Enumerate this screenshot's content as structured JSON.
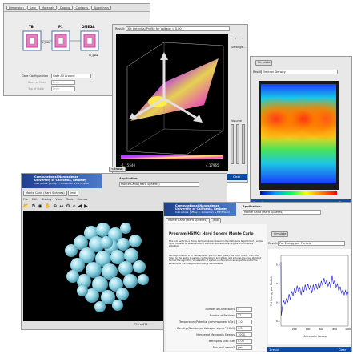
{
  "w1": {
    "tabs": [
      "Dimension",
      "Gate",
      "Materials",
      "Doping",
      "Contacts",
      "Algorithms"
    ],
    "diagram": {
      "labels": [
        "TBI",
        "P1",
        "OMEGA",
        "L_gate",
        "W_gate"
      ]
    },
    "gate_config_label": "Gate Configuration",
    "gate_config_value": "Gate All Around",
    "row2_label": "Back of Gate",
    "row2_value": "5nm",
    "row3_label": "Top of Gate",
    "row3_value": "5nm"
  },
  "w2": {
    "result_label": "Result:",
    "result_value": "3D: Potential Profile for Voltage = 0.00",
    "settings_label": "Settings...",
    "colorbar_min": "-1.15540",
    "colorbar_max": "4.17965",
    "volume_label": "Volume",
    "footer_left": "1 result",
    "footer_right": "Clear",
    "input_button": "< Input"
  },
  "w3": {
    "simulate_button": "Simulate",
    "result_label": "Result:",
    "result_value": "Electron Density",
    "footer_left": "1 result",
    "footer_right": "Clear"
  },
  "w4": {
    "banner_line1": "Computational Nanoscience",
    "banner_line2": "University of California, Berkeley",
    "banner_line3": "Instructors: Jeffrey C. Grossman & Elif Ertekin",
    "application_label": "Application:",
    "application_value": "Monte Carlo (Hard Spheres)",
    "tabs": [
      "Monte Carlo (Hard Spheres)",
      "Jmol"
    ],
    "menu": [
      "File",
      "Edit",
      "Display",
      "View",
      "Tools",
      "Macros"
    ],
    "status": "776 x 671"
  },
  "w5": {
    "banner_line1": "Computational Nanoscience",
    "banner_line2": "University of California, Berkeley",
    "banner_line3": "Instructors: Jeffrey C. Grossman & Elif Ertekin",
    "application_label": "Application:",
    "application_value": "Monte Carlo (Hard Spheres)",
    "tabs": [
      "Monte Carlo (Hard Spheres)",
      "Jmol"
    ],
    "simulate_button": "Simulate",
    "result_label": "Result:",
    "result_value": "Pot Energy per Particle",
    "heading": "Program HSMC: Hard Sphere Monte Carlo",
    "description": "This tool performs a Monte Carlo simulation based on the Metropolis Algorithm of a simple liquid modeled as an ensemble of identical spheres interacting via a hard sphere potential.",
    "description2": "Although this tool is for hard spheres, you can also specify the cutoff radius. The code relies on the ability to sample configurations and states, and includes the most standard form of the algorithm. Visualization of system configurations as snapshots and of the evolution of the total potential energy are available.",
    "params": [
      {
        "label": "Number of Dimensions",
        "value": "3"
      },
      {
        "label": "Number of Particles",
        "value": "32"
      },
      {
        "label": "Temperature/Potential (dimensionless kT/ε)",
        "value": "1.0"
      },
      {
        "label": "Density (Number particles per sigma^d Cell)",
        "value": "0.5"
      },
      {
        "label": "Number of Metropolis Sweeps",
        "value": "1000"
      },
      {
        "label": "Metropolis Step Size",
        "value": "0.05"
      },
      {
        "label": "Run Jmol viewer?",
        "value": "yes"
      }
    ],
    "footer_left": "1 result",
    "footer_right": "Clear"
  },
  "chart_data": {
    "type": "line",
    "title": "",
    "xlabel": "Metropolis Sweep",
    "ylabel": "Pot Energy per Particle",
    "xlim": [
      0,
      1000
    ],
    "ylim": [
      0.15,
      0.9
    ],
    "xticks": [
      "200",
      "400",
      "600",
      "800",
      "1000"
    ],
    "yticks": [
      "0.2",
      "0.4",
      "0.6",
      "0.8"
    ],
    "series": [
      {
        "values": [
          {
            "x": 0,
            "y": 0.83
          },
          {
            "x": 5,
            "y": 0.26
          },
          {
            "x": 20,
            "y": 0.35
          },
          {
            "x": 40,
            "y": 0.42
          },
          {
            "x": 60,
            "y": 0.38
          },
          {
            "x": 80,
            "y": 0.44
          },
          {
            "x": 100,
            "y": 0.4
          },
          {
            "x": 120,
            "y": 0.49
          },
          {
            "x": 140,
            "y": 0.43
          },
          {
            "x": 160,
            "y": 0.52
          },
          {
            "x": 180,
            "y": 0.47
          },
          {
            "x": 200,
            "y": 0.55
          },
          {
            "x": 220,
            "y": 0.5
          },
          {
            "x": 240,
            "y": 0.58
          },
          {
            "x": 260,
            "y": 0.52
          },
          {
            "x": 280,
            "y": 0.56
          },
          {
            "x": 300,
            "y": 0.48
          },
          {
            "x": 320,
            "y": 0.57
          },
          {
            "x": 340,
            "y": 0.51
          },
          {
            "x": 360,
            "y": 0.59
          },
          {
            "x": 380,
            "y": 0.53
          },
          {
            "x": 400,
            "y": 0.6
          },
          {
            "x": 420,
            "y": 0.54
          },
          {
            "x": 440,
            "y": 0.58
          },
          {
            "x": 460,
            "y": 0.5
          },
          {
            "x": 480,
            "y": 0.59
          },
          {
            "x": 500,
            "y": 0.53
          },
          {
            "x": 520,
            "y": 0.6
          },
          {
            "x": 540,
            "y": 0.54
          },
          {
            "x": 560,
            "y": 0.61
          },
          {
            "x": 580,
            "y": 0.56
          },
          {
            "x": 600,
            "y": 0.63
          },
          {
            "x": 620,
            "y": 0.58
          },
          {
            "x": 640,
            "y": 0.66
          },
          {
            "x": 660,
            "y": 0.6
          },
          {
            "x": 680,
            "y": 0.64
          },
          {
            "x": 700,
            "y": 0.57
          },
          {
            "x": 720,
            "y": 0.62
          },
          {
            "x": 740,
            "y": 0.55
          },
          {
            "x": 760,
            "y": 0.69
          },
          {
            "x": 780,
            "y": 0.6
          },
          {
            "x": 800,
            "y": 0.64
          },
          {
            "x": 820,
            "y": 0.56
          },
          {
            "x": 840,
            "y": 0.6
          },
          {
            "x": 860,
            "y": 0.52
          },
          {
            "x": 880,
            "y": 0.57
          },
          {
            "x": 900,
            "y": 0.5
          },
          {
            "x": 920,
            "y": 0.54
          },
          {
            "x": 940,
            "y": 0.48
          },
          {
            "x": 960,
            "y": 0.53
          },
          {
            "x": 980,
            "y": 0.47
          },
          {
            "x": 1000,
            "y": 0.52
          }
        ]
      }
    ]
  },
  "colors": {
    "titlebar_blue": "#0e55b8",
    "banner_blue": "#2a4d9c",
    "plot_line": "#1010d0",
    "sphere": "#8ccfe0"
  }
}
